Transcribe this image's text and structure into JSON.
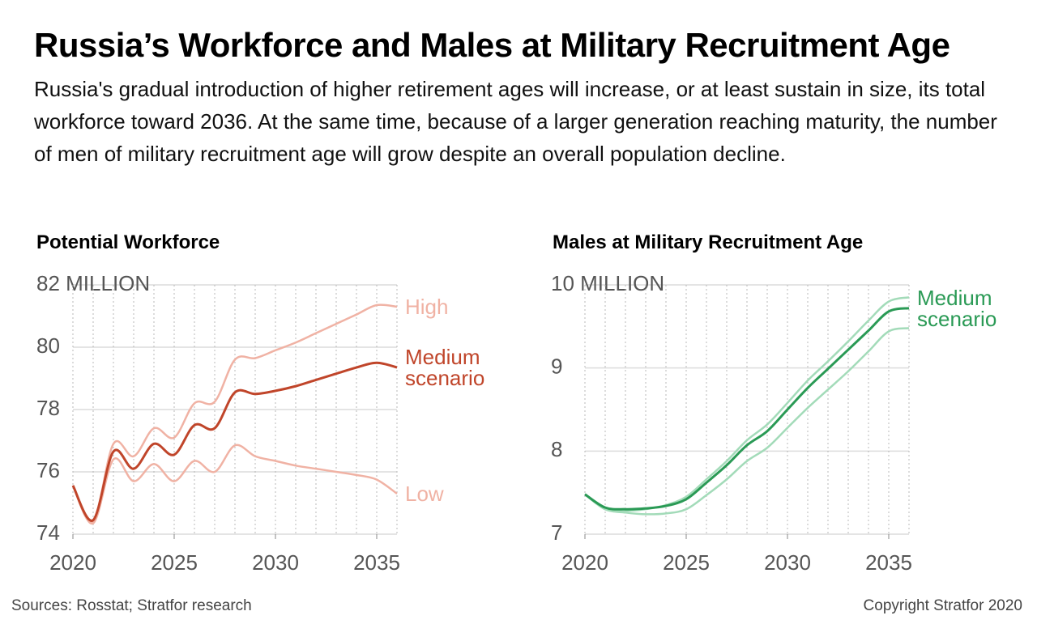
{
  "header": {
    "title": "Russia’s Workforce and Males at Military Recruitment Age",
    "subtitle": "Russia's gradual introduction of higher retirement ages will increase, or at least sustain in size, its total workforce toward 2036. At the same time, because of a larger generation reaching maturity, the number of men of military recruitment age will grow despite an overall population decline."
  },
  "chart_data": [
    {
      "type": "line",
      "title": "Potential Workforce",
      "x": [
        2020,
        2021,
        2022,
        2023,
        2024,
        2025,
        2026,
        2027,
        2028,
        2029,
        2030,
        2031,
        2032,
        2033,
        2034,
        2035,
        2036
      ],
      "xlim": [
        2020,
        2036
      ],
      "xticks": [
        2020,
        2025,
        2030,
        2035
      ],
      "ylim": [
        74,
        82
      ],
      "yticks": [
        74,
        76,
        78,
        80,
        {
          "value": 82,
          "label": "82 MILLION"
        }
      ],
      "ygrid": true,
      "xgrid": true,
      "series": [
        {
          "name": "High",
          "color": "#f0b2a4",
          "values": [
            75.56,
            74.4,
            76.9,
            76.5,
            77.4,
            77.1,
            78.2,
            78.25,
            79.6,
            79.65,
            79.9,
            80.15,
            80.45,
            80.75,
            81.05,
            81.35,
            81.3
          ]
        },
        {
          "name": "Low",
          "color": "#f0b2a4",
          "values": [
            75.56,
            74.35,
            76.4,
            75.7,
            76.25,
            75.7,
            76.35,
            76.0,
            76.85,
            76.5,
            76.35,
            76.2,
            76.1,
            76.0,
            75.9,
            75.75,
            75.3
          ]
        },
        {
          "name": "Medium scenario",
          "color": "#c0452a",
          "values": [
            75.56,
            74.45,
            76.65,
            76.1,
            76.9,
            76.55,
            77.5,
            77.4,
            78.55,
            78.5,
            78.6,
            78.75,
            78.95,
            79.15,
            79.35,
            79.5,
            79.35
          ]
        }
      ]
    },
    {
      "type": "line",
      "title": "Males at Military Recruitment Age",
      "x": [
        2020,
        2021,
        2022,
        2023,
        2024,
        2025,
        2026,
        2027,
        2028,
        2029,
        2030,
        2031,
        2032,
        2033,
        2034,
        2035,
        2036
      ],
      "xlim": [
        2020,
        2036
      ],
      "xticks": [
        2020,
        2025,
        2030,
        2035
      ],
      "ylim": [
        7,
        10
      ],
      "yticks": [
        7,
        8,
        9,
        {
          "value": 10,
          "label": "10 MILLION"
        }
      ],
      "ygrid": true,
      "xgrid": true,
      "series": [
        {
          "color": "#a3dbb9",
          "values": [
            7.48,
            7.3,
            7.28,
            7.3,
            7.35,
            7.45,
            7.66,
            7.88,
            8.13,
            8.32,
            8.58,
            8.85,
            9.08,
            9.32,
            9.57,
            9.8,
            9.85
          ]
        },
        {
          "color": "#a3dbb9",
          "values": [
            7.48,
            7.3,
            7.26,
            7.24,
            7.25,
            7.3,
            7.47,
            7.66,
            7.88,
            8.04,
            8.28,
            8.52,
            8.74,
            8.96,
            9.2,
            9.44,
            9.48
          ]
        },
        {
          "name": "Medium scenario",
          "color": "#2a9a55",
          "values": [
            7.48,
            7.32,
            7.3,
            7.31,
            7.34,
            7.42,
            7.62,
            7.83,
            8.07,
            8.24,
            8.5,
            8.76,
            8.99,
            9.22,
            9.45,
            9.68,
            9.72
          ]
        }
      ]
    }
  ],
  "footer": {
    "sources": "Sources: Rosstat; Stratfor research",
    "copyright": "Copyright Stratfor 2020"
  }
}
